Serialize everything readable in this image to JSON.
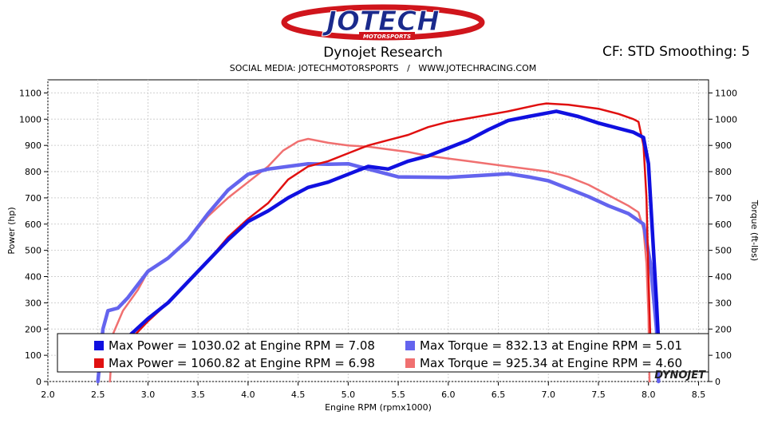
{
  "header": {
    "logo_main": "JOTECH",
    "logo_sub": "MOTORSPORTS",
    "title": "Dynojet Research",
    "cf_label": "CF: STD Smoothing: 5",
    "social": "SOCIAL MEDIA: JOTECHMOTORSPORTS   /   WWW.JOTECHRACING.COM"
  },
  "brand": {
    "dyno_logo": "DYNOJET",
    "colors": {
      "dark_blue": "#1010e0",
      "light_blue": "#6464ee",
      "dark_red": "#e01010",
      "light_red": "#f07070",
      "logo_red": "#d0151c",
      "logo_blue": "#1a2a8c"
    }
  },
  "chart_data": {
    "type": "line",
    "xlabel": "Engine RPM (rpmx1000)",
    "ylabel": "Power (hp)",
    "y2label": "Torque (ft-lbs)",
    "xlim": [
      2.0,
      8.6
    ],
    "ylim": [
      0,
      1150
    ],
    "xticks": [
      "2.0",
      "2.5",
      "3.0",
      "3.5",
      "4.0",
      "4.5",
      "5.0",
      "5.5",
      "6.0",
      "6.5",
      "7.0",
      "7.5",
      "8.0",
      "8.5"
    ],
    "yticks": [
      "0",
      "100",
      "200",
      "300",
      "400",
      "500",
      "600",
      "700",
      "800",
      "900",
      "1000",
      "1100"
    ],
    "y2ticks": [
      "0",
      "100",
      "200",
      "300",
      "400",
      "500",
      "600",
      "700",
      "800",
      "900",
      "1000",
      "1100"
    ],
    "grid": true,
    "legend": [
      {
        "text": "Max Power = 1030.02 at Engine RPM = 7.08",
        "color": "#1010e0"
      },
      {
        "text": "Max Torque = 832.13 at Engine RPM = 5.01",
        "color": "#6464ee"
      },
      {
        "text": "Max Power = 1060.82 at Engine RPM = 6.98",
        "color": "#e01010"
      },
      {
        "text": "Max Torque = 925.34 at Engine RPM = 4.60",
        "color": "#f07070"
      }
    ],
    "series": [
      {
        "key": "torque_red",
        "color": "#f07070",
        "width": 2.5,
        "points": [
          [
            2.62,
            0
          ],
          [
            2.65,
            180
          ],
          [
            2.75,
            270
          ],
          [
            2.9,
            350
          ],
          [
            3.0,
            420
          ],
          [
            3.2,
            470
          ],
          [
            3.4,
            540
          ],
          [
            3.6,
            630
          ],
          [
            3.8,
            700
          ],
          [
            4.0,
            760
          ],
          [
            4.2,
            820
          ],
          [
            4.35,
            880
          ],
          [
            4.5,
            915
          ],
          [
            4.6,
            925
          ],
          [
            4.8,
            910
          ],
          [
            5.0,
            900
          ],
          [
            5.2,
            895
          ],
          [
            5.4,
            885
          ],
          [
            5.6,
            875
          ],
          [
            5.8,
            860
          ],
          [
            6.0,
            850
          ],
          [
            6.2,
            840
          ],
          [
            6.4,
            830
          ],
          [
            6.6,
            820
          ],
          [
            6.8,
            810
          ],
          [
            7.0,
            800
          ],
          [
            7.2,
            780
          ],
          [
            7.4,
            750
          ],
          [
            7.6,
            710
          ],
          [
            7.8,
            670
          ],
          [
            7.9,
            645
          ],
          [
            7.95,
            580
          ],
          [
            7.98,
            450
          ],
          [
            8.0,
            250
          ],
          [
            8.01,
            0
          ]
        ]
      },
      {
        "key": "torque_blue",
        "color": "#6464ee",
        "width": 4.5,
        "points": [
          [
            2.5,
            0
          ],
          [
            2.55,
            200
          ],
          [
            2.6,
            270
          ],
          [
            2.7,
            280
          ],
          [
            2.8,
            320
          ],
          [
            3.0,
            420
          ],
          [
            3.2,
            470
          ],
          [
            3.4,
            540
          ],
          [
            3.6,
            640
          ],
          [
            3.8,
            730
          ],
          [
            4.0,
            790
          ],
          [
            4.2,
            810
          ],
          [
            4.4,
            820
          ],
          [
            4.6,
            830
          ],
          [
            4.8,
            828
          ],
          [
            5.0,
            830
          ],
          [
            5.2,
            810
          ],
          [
            5.5,
            780
          ],
          [
            6.0,
            778
          ],
          [
            6.3,
            785
          ],
          [
            6.6,
            792
          ],
          [
            6.8,
            780
          ],
          [
            7.0,
            765
          ],
          [
            7.2,
            735
          ],
          [
            7.4,
            705
          ],
          [
            7.6,
            670
          ],
          [
            7.8,
            640
          ],
          [
            7.95,
            600
          ],
          [
            8.02,
            450
          ],
          [
            8.08,
            200
          ],
          [
            8.1,
            0
          ]
        ]
      },
      {
        "key": "power_red",
        "color": "#e01010",
        "width": 2.5,
        "points": [
          [
            2.8,
            150
          ],
          [
            3.0,
            230
          ],
          [
            3.2,
            300
          ],
          [
            3.4,
            380
          ],
          [
            3.6,
            460
          ],
          [
            3.8,
            550
          ],
          [
            4.0,
            620
          ],
          [
            4.2,
            680
          ],
          [
            4.4,
            770
          ],
          [
            4.6,
            820
          ],
          [
            4.8,
            840
          ],
          [
            5.0,
            870
          ],
          [
            5.2,
            900
          ],
          [
            5.4,
            920
          ],
          [
            5.6,
            940
          ],
          [
            5.8,
            970
          ],
          [
            6.0,
            990
          ],
          [
            6.3,
            1010
          ],
          [
            6.6,
            1030
          ],
          [
            6.9,
            1055
          ],
          [
            6.98,
            1060
          ],
          [
            7.2,
            1055
          ],
          [
            7.5,
            1040
          ],
          [
            7.7,
            1020
          ],
          [
            7.85,
            1000
          ],
          [
            7.9,
            990
          ],
          [
            7.95,
            900
          ],
          [
            7.98,
            700
          ],
          [
            8.0,
            400
          ],
          [
            8.02,
            150
          ]
        ]
      },
      {
        "key": "power_blue",
        "color": "#1010e0",
        "width": 4.5,
        "points": [
          [
            2.8,
            170
          ],
          [
            3.0,
            240
          ],
          [
            3.2,
            300
          ],
          [
            3.4,
            380
          ],
          [
            3.6,
            460
          ],
          [
            3.8,
            540
          ],
          [
            4.0,
            610
          ],
          [
            4.2,
            650
          ],
          [
            4.4,
            700
          ],
          [
            4.6,
            740
          ],
          [
            4.8,
            760
          ],
          [
            5.0,
            790
          ],
          [
            5.2,
            820
          ],
          [
            5.4,
            810
          ],
          [
            5.6,
            840
          ],
          [
            5.8,
            860
          ],
          [
            6.0,
            890
          ],
          [
            6.2,
            920
          ],
          [
            6.4,
            960
          ],
          [
            6.6,
            995
          ],
          [
            6.8,
            1010
          ],
          [
            7.08,
            1030
          ],
          [
            7.3,
            1010
          ],
          [
            7.5,
            985
          ],
          [
            7.7,
            965
          ],
          [
            7.85,
            950
          ],
          [
            7.95,
            930
          ],
          [
            8.0,
            830
          ],
          [
            8.05,
            500
          ],
          [
            8.08,
            300
          ],
          [
            8.1,
            150
          ]
        ]
      }
    ]
  }
}
